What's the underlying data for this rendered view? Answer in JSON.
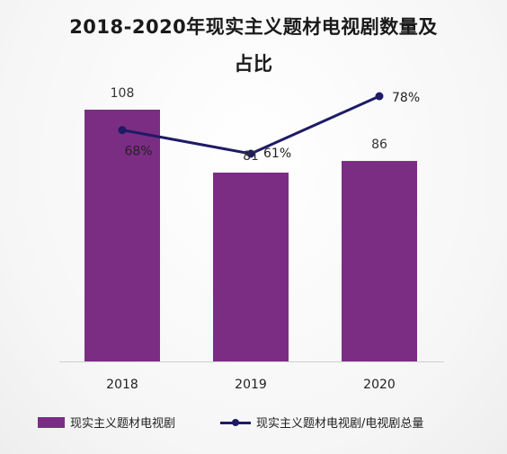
{
  "title_line1": "2018-2020年现实主义题材电视剧数量及",
  "title_line2": "占比",
  "colors": {
    "bar": "#7b2d84",
    "line": "#1d1b66",
    "axis": "#cfcfcf"
  },
  "chart_data": {
    "type": "bar",
    "categories": [
      "2018",
      "2019",
      "2020"
    ],
    "series": [
      {
        "name": "现实主义题材电视剧",
        "type": "bar",
        "values": [
          108,
          81,
          86
        ],
        "labels": [
          "108",
          "81",
          "86"
        ]
      },
      {
        "name": "现实主义题材电视剧/电视剧总量",
        "type": "line",
        "values": [
          68,
          61,
          78
        ],
        "labels": [
          "68%",
          "61%",
          "78%"
        ]
      }
    ],
    "ylim_bar": [
      0,
      120
    ],
    "ylim_line": [
      0,
      100
    ],
    "legend_position": "bottom",
    "grid": false
  }
}
